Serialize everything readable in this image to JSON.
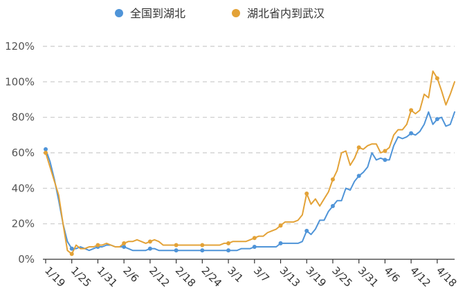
{
  "chart_data": {
    "type": "line",
    "title": "",
    "xlabel": "",
    "ylabel": "",
    "ylim": [
      0,
      120
    ],
    "yticks": [
      "0%",
      "20%",
      "40%",
      "60%",
      "80%",
      "100%",
      "120%"
    ],
    "grid": "horizontal-dashed",
    "legend": "top-center",
    "x_tick_labels": [
      "1/19",
      "1/25",
      "1/31",
      "2/6",
      "2/12",
      "2/18",
      "2/24",
      "3/1",
      "3/7",
      "3/13",
      "3/19",
      "3/25",
      "3/31",
      "4/6",
      "4/12",
      "4/18"
    ],
    "x_start": "1/19",
    "x_end": "4/20",
    "series": [
      {
        "name": "全国到湖北",
        "color": "#4f94d8",
        "marker_days": [
          0,
          6,
          12,
          18,
          24,
          30,
          36,
          42,
          48,
          54,
          60,
          66,
          72,
          78,
          84,
          90
        ],
        "values": [
          62,
          55,
          45,
          33,
          20,
          10,
          6,
          6,
          7,
          6,
          5,
          6,
          7,
          7,
          8,
          8,
          7,
          7,
          7,
          6,
          5,
          5,
          5,
          5,
          6,
          6,
          5,
          5,
          5,
          5,
          5,
          5,
          5,
          5,
          5,
          5,
          5,
          5,
          5,
          5,
          5,
          5,
          5,
          5,
          5,
          6,
          6,
          6,
          7,
          7,
          7,
          7,
          7,
          7,
          9,
          9,
          9,
          9,
          9,
          10,
          16,
          14,
          17,
          22,
          22,
          27,
          30,
          33,
          33,
          40,
          39,
          44,
          47,
          49,
          52,
          60,
          56,
          57,
          56,
          56,
          64,
          69,
          68,
          69,
          71,
          70,
          72,
          76,
          83,
          76,
          79,
          80,
          75,
          76,
          83
        ]
      },
      {
        "name": "湖北省内到武汉",
        "color": "#e3a237",
        "marker_days": [
          0,
          6,
          12,
          18,
          24,
          30,
          36,
          42,
          48,
          54,
          60,
          66,
          72,
          78,
          84,
          90
        ],
        "values": [
          60,
          52,
          44,
          36,
          20,
          5,
          3,
          8,
          6,
          6,
          7,
          7,
          8,
          8,
          9,
          8,
          7,
          7,
          9,
          10,
          10,
          11,
          10,
          9,
          10,
          11,
          10,
          8,
          8,
          8,
          8,
          8,
          8,
          8,
          8,
          8,
          8,
          8,
          8,
          8,
          8,
          9,
          9,
          10,
          10,
          10,
          10,
          11,
          12,
          13,
          13,
          15,
          16,
          17,
          19,
          21,
          21,
          21,
          22,
          25,
          37,
          31,
          34,
          30,
          34,
          38,
          45,
          50,
          60,
          61,
          53,
          57,
          63,
          62,
          64,
          65,
          65,
          60,
          61,
          63,
          70,
          73,
          73,
          76,
          84,
          82,
          84,
          93,
          91,
          106,
          102,
          95,
          87,
          93,
          100
        ]
      }
    ]
  }
}
